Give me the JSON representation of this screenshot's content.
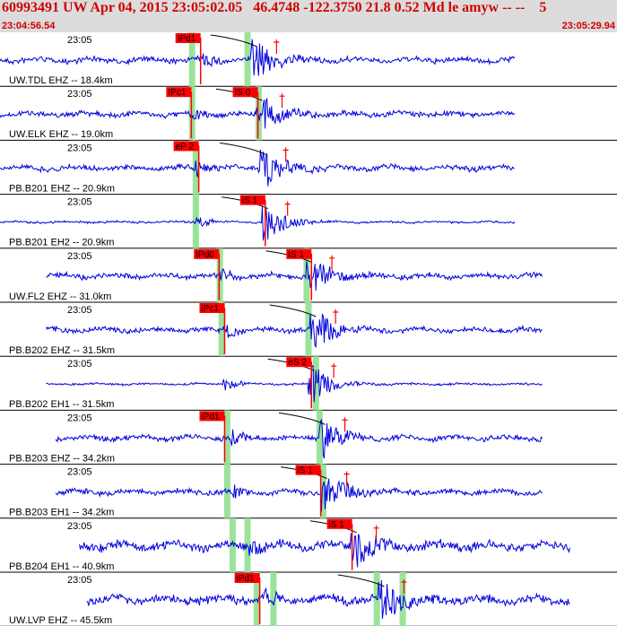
{
  "header": {
    "title": "60993491 UW Apr 04, 2015 23:05:02.05   46.4748 -122.3750 21.8 0.52 Md le amyw -- --    5",
    "start_time": "23:04:56.54",
    "end_time": "23:05:29.94"
  },
  "colors": {
    "trace": "#0000dd",
    "pick": "#ff0000",
    "marker": "#9be39b",
    "title": "#d00000",
    "header_bg": "#dcdcdc"
  },
  "chart_data": {
    "type": "line",
    "time_range": [
      "23:04:56.54",
      "23:05:29.94"
    ],
    "tick_label": "23:05",
    "traces": [
      {
        "label": "UW.TDL EHZ -- 18.4km",
        "picks": [
          {
            "label": "IPd1",
            "t": 9.5
          }
        ],
        "p_onset": 11.0,
        "s_onset": 13.9,
        "markers": [
          10.4,
          13.4
        ]
      },
      {
        "label": "UW.ELK EHZ -- 19.0km",
        "picks": [
          {
            "label": "IPc1",
            "t": 9.0
          },
          {
            "label": "IS 0",
            "t": 12.6
          }
        ],
        "p_onset": 10.3,
        "s_onset": 14.2,
        "markers": [
          10.4,
          14.0
        ]
      },
      {
        "label": "PB.B201 EHZ -- 20.9km",
        "picks": [
          {
            "label": "eP 2",
            "t": 9.4
          }
        ],
        "p_onset": 10.6,
        "s_onset": 14.4,
        "markers": [
          10.6
        ]
      },
      {
        "label": "PB.B201 EH2 -- 20.9km",
        "picks": [
          {
            "label": "iS 1",
            "t": 13.0
          }
        ],
        "p_onset": 10.6,
        "s_onset": 14.5,
        "markers": [
          10.6
        ]
      },
      {
        "label": "UW.FL2 EHZ -- 31.0km",
        "picks": [
          {
            "label": "IPd0",
            "t": 10.5
          },
          {
            "label": "IS 1",
            "t": 15.5
          }
        ],
        "p_onset": 11.9,
        "s_onset": 16.9,
        "markers": [
          11.9,
          16.6
        ]
      },
      {
        "label": "PB.B202 EHZ -- 31.5km",
        "picks": [
          {
            "label": "iPc1",
            "t": 10.8
          }
        ],
        "p_onset": 12.1,
        "s_onset": 17.1,
        "markers": [
          12.0,
          16.7
        ]
      },
      {
        "label": "PB.B202 EH1 -- 31.5km",
        "picks": [
          {
            "label": "eS 2",
            "t": 15.5
          }
        ],
        "p_onset": 12.1,
        "s_onset": 17.0,
        "markers": [
          17.1
        ]
      },
      {
        "label": "PB.B203 EHZ -- 34.2km",
        "picks": [
          {
            "label": "iPd1",
            "t": 10.8
          }
        ],
        "p_onset": 12.5,
        "s_onset": 17.6,
        "markers": [
          12.3,
          17.3
        ]
      },
      {
        "label": "PB.B203 EH1 -- 34.2km",
        "picks": [
          {
            "label": "iS 1",
            "t": 16.0
          }
        ],
        "p_onset": 12.5,
        "s_onset": 17.7,
        "markers": [
          12.3,
          17.5
        ]
      },
      {
        "label": "PB.B204 EH1 -- 40.9km",
        "picks": [
          {
            "label": "iS 1",
            "t": 17.7
          }
        ],
        "p_onset": 13.4,
        "s_onset": 19.3,
        "markers": [
          12.6,
          13.4
        ]
      },
      {
        "label": "UW.LVP EHZ -- 45.5km",
        "picks": [
          {
            "label": "iPd1",
            "t": 12.7
          }
        ],
        "p_onset": 14.2,
        "s_onset": 20.8,
        "markers": [
          13.9,
          14.8,
          20.4,
          21.8
        ]
      }
    ]
  }
}
